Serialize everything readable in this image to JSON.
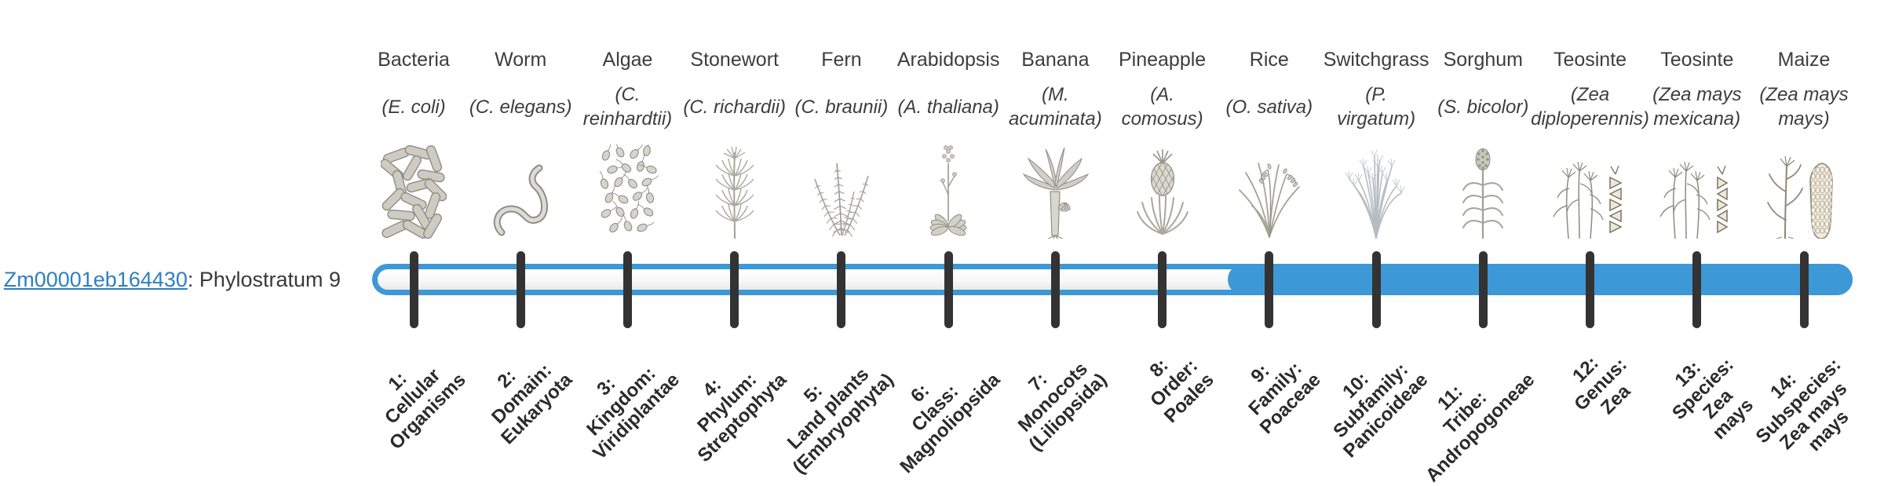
{
  "gene": {
    "id": "Zm00001eb164430",
    "suffix": ": Phylostratum 9",
    "phylostratum": 9
  },
  "bar": {
    "type": "phylostratum-timeline",
    "highlighted_from_stratum": 9,
    "total_strata": 14,
    "fill_color": "#3d98d6",
    "track_border_color": "#3d98d6",
    "tick_color": "#333333"
  },
  "colors": {
    "link": "#2e7fc2",
    "label_text": "#3d3d3d",
    "bold_label": "#2b2b2b"
  },
  "organisms": [
    {
      "name": "Bacteria",
      "sci": "(E. coli)",
      "icon": "bacteria"
    },
    {
      "name": "Worm",
      "sci": "(C. elegans)",
      "icon": "worm"
    },
    {
      "name": "Algae",
      "sci": "(C.\nreinhardtii)",
      "icon": "algae"
    },
    {
      "name": "Stonewort",
      "sci": "(C. richardii)",
      "icon": "stonewort"
    },
    {
      "name": "Fern",
      "sci": "(C. braunii)",
      "icon": "fern"
    },
    {
      "name": "Arabidopsis",
      "sci": "(A. thaliana)",
      "icon": "arabidopsis"
    },
    {
      "name": "Banana",
      "sci": "(M.\nacuminata)",
      "icon": "banana"
    },
    {
      "name": "Pineapple",
      "sci": "(A.\ncomosus)",
      "icon": "pineapple"
    },
    {
      "name": "Rice",
      "sci": "(O. sativa)",
      "icon": "rice"
    },
    {
      "name": "Switchgrass",
      "sci": "(P.\nvirgatum)",
      "icon": "switchgrass"
    },
    {
      "name": "Sorghum",
      "sci": "(S. bicolor)",
      "icon": "sorghum"
    },
    {
      "name": "Teosinte",
      "sci": "(Zea\ndiploperennis)",
      "icon": "teosinte-diploperennis"
    },
    {
      "name": "Teosinte",
      "sci": "(Zea mays\nmexicana)",
      "icon": "teosinte-mexicana"
    },
    {
      "name": "Maize",
      "sci": "(Zea mays\nmays)",
      "icon": "maize"
    }
  ],
  "phylostrata": [
    "1:\nCellular\nOrganisms",
    "2:\nDomain:\nEukaryota",
    "3:\nKingdom:\nViridiplantae",
    "4:\nPhylum:\nStreptophyta",
    "5:\nLand plants\n(Embryophyta)",
    "6:\nClass:\nMagnoliopsida",
    "7:\nMonocots\n(Liliopsida)",
    "8:\nOrder:\nPoales",
    "9:\nFamily:\nPoaceae",
    "10:\nSubfamily:\nPanicoideae",
    "11:\nTribe:\nAndropogoneae",
    "12:\nGenus:\nZea",
    "13:\nSpecies:\nZea\nmays",
    "14:\nSubspecies:\nZea mays\nmays"
  ]
}
